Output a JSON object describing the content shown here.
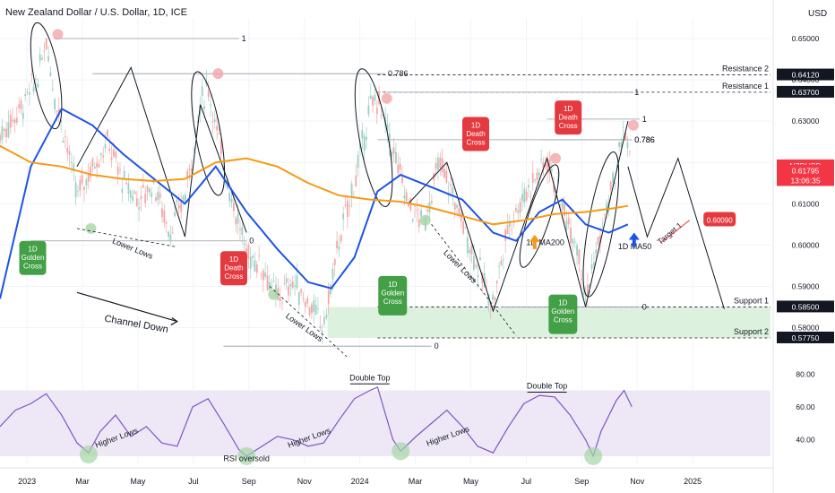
{
  "header": {
    "title": "New Zealand Dollar / U.S. Dollar, 1D, ICE",
    "currency": "USD"
  },
  "colors": {
    "ma50": "#1e53e5",
    "ma200": "#f59a14",
    "rsi": "#7e57c2",
    "rsi_band": "#ede7f6",
    "up_candle": "#9ad0c4",
    "down_candle": "#f3a6a6",
    "support_zone": "#d6f0d9",
    "golden_badge": "#43a047",
    "death_badge": "#e53940",
    "dark_badge": "#131722",
    "price_badge": "#f23645"
  },
  "chart_data": {
    "type": "candlestick",
    "instrument": "NZDUSD",
    "timeframe": "1D",
    "x_tick_labels": [
      "2023",
      "Mar",
      "May",
      "Jul",
      "Sep",
      "Nov",
      "2024",
      "Mar",
      "May",
      "Jul",
      "Sep",
      "Nov",
      "2025"
    ],
    "y_tick_labels": [
      "0.65000",
      "0.64000",
      "0.63000",
      "0.62000",
      "0.61000",
      "0.60000",
      "0.59000",
      "0.58000"
    ],
    "ylim": [
      0.5725,
      0.655
    ],
    "price_axis_badges": [
      {
        "label": "0.64120",
        "value": 0.6412,
        "style": "dark"
      },
      {
        "label": "0.63700",
        "value": 0.637,
        "style": "dark"
      },
      {
        "label": "NZDUSD",
        "value": 0.6192,
        "style": "red"
      },
      {
        "label": "0.61795",
        "value": 0.61795,
        "style": "red"
      },
      {
        "label": "13:06:35",
        "value": 0.6156,
        "style": "red"
      },
      {
        "label": "0.58500",
        "value": 0.585,
        "style": "dark"
      },
      {
        "label": "0.57750",
        "value": 0.5775,
        "style": "dark"
      }
    ],
    "levels": [
      {
        "name": "Resistance 2",
        "value": 0.6412
      },
      {
        "name": "Resistance 1",
        "value": 0.637
      },
      {
        "name": "Support 1",
        "value": 0.585
      },
      {
        "name": "Support 2",
        "value": 0.5775
      }
    ],
    "fib_labels": [
      "1",
      "0.786",
      "0",
      "1",
      "0.786",
      "0",
      "1",
      "0.786",
      "0"
    ],
    "price_series": [
      {
        "t": 0.0,
        "v": 0.6265
      },
      {
        "t": 0.03,
        "v": 0.634
      },
      {
        "t": 0.05,
        "v": 0.641
      },
      {
        "t": 0.06,
        "v": 0.65
      },
      {
        "t": 0.07,
        "v": 0.637
      },
      {
        "t": 0.085,
        "v": 0.626
      },
      {
        "t": 0.1,
        "v": 0.612
      },
      {
        "t": 0.12,
        "v": 0.619
      },
      {
        "t": 0.14,
        "v": 0.625
      },
      {
        "t": 0.16,
        "v": 0.615
      },
      {
        "t": 0.18,
        "v": 0.611
      },
      {
        "t": 0.2,
        "v": 0.615
      },
      {
        "t": 0.22,
        "v": 0.603
      },
      {
        "t": 0.24,
        "v": 0.612
      },
      {
        "t": 0.26,
        "v": 0.634
      },
      {
        "t": 0.27,
        "v": 0.6385
      },
      {
        "t": 0.285,
        "v": 0.624
      },
      {
        "t": 0.3,
        "v": 0.612
      },
      {
        "t": 0.32,
        "v": 0.598
      },
      {
        "t": 0.34,
        "v": 0.595
      },
      {
        "t": 0.36,
        "v": 0.587
      },
      {
        "t": 0.38,
        "v": 0.591
      },
      {
        "t": 0.4,
        "v": 0.586
      },
      {
        "t": 0.42,
        "v": 0.58
      },
      {
        "t": 0.44,
        "v": 0.601
      },
      {
        "t": 0.46,
        "v": 0.615
      },
      {
        "t": 0.48,
        "v": 0.633
      },
      {
        "t": 0.49,
        "v": 0.6355
      },
      {
        "t": 0.51,
        "v": 0.623
      },
      {
        "t": 0.53,
        "v": 0.61
      },
      {
        "t": 0.55,
        "v": 0.605
      },
      {
        "t": 0.57,
        "v": 0.62
      },
      {
        "t": 0.59,
        "v": 0.611
      },
      {
        "t": 0.61,
        "v": 0.6
      },
      {
        "t": 0.63,
        "v": 0.59
      },
      {
        "t": 0.64,
        "v": 0.586
      },
      {
        "t": 0.66,
        "v": 0.605
      },
      {
        "t": 0.68,
        "v": 0.612
      },
      {
        "t": 0.7,
        "v": 0.618
      },
      {
        "t": 0.71,
        "v": 0.621
      },
      {
        "t": 0.73,
        "v": 0.609
      },
      {
        "t": 0.75,
        "v": 0.6
      },
      {
        "t": 0.76,
        "v": 0.587
      },
      {
        "t": 0.78,
        "v": 0.603
      },
      {
        "t": 0.8,
        "v": 0.618
      },
      {
        "t": 0.81,
        "v": 0.629
      },
      {
        "t": 0.82,
        "v": 0.618
      }
    ],
    "series": [
      {
        "name": "1D MA50",
        "points": [
          {
            "t": 0.0,
            "v": 0.587
          },
          {
            "t": 0.04,
            "v": 0.619
          },
          {
            "t": 0.08,
            "v": 0.633
          },
          {
            "t": 0.12,
            "v": 0.629
          },
          {
            "t": 0.16,
            "v": 0.622
          },
          {
            "t": 0.2,
            "v": 0.616
          },
          {
            "t": 0.24,
            "v": 0.61
          },
          {
            "t": 0.28,
            "v": 0.619
          },
          {
            "t": 0.32,
            "v": 0.608
          },
          {
            "t": 0.36,
            "v": 0.599
          },
          {
            "t": 0.4,
            "v": 0.591
          },
          {
            "t": 0.43,
            "v": 0.5895
          },
          {
            "t": 0.46,
            "v": 0.597
          },
          {
            "t": 0.49,
            "v": 0.613
          },
          {
            "t": 0.52,
            "v": 0.617
          },
          {
            "t": 0.56,
            "v": 0.614
          },
          {
            "t": 0.6,
            "v": 0.611
          },
          {
            "t": 0.64,
            "v": 0.603
          },
          {
            "t": 0.67,
            "v": 0.601
          },
          {
            "t": 0.7,
            "v": 0.608
          },
          {
            "t": 0.73,
            "v": 0.611
          },
          {
            "t": 0.76,
            "v": 0.605
          },
          {
            "t": 0.79,
            "v": 0.603
          },
          {
            "t": 0.815,
            "v": 0.605
          }
        ]
      },
      {
        "name": "1D MA200",
        "points": [
          {
            "t": 0.0,
            "v": 0.624
          },
          {
            "t": 0.04,
            "v": 0.62
          },
          {
            "t": 0.08,
            "v": 0.619
          },
          {
            "t": 0.12,
            "v": 0.617
          },
          {
            "t": 0.16,
            "v": 0.616
          },
          {
            "t": 0.2,
            "v": 0.6155
          },
          {
            "t": 0.24,
            "v": 0.616
          },
          {
            "t": 0.28,
            "v": 0.62
          },
          {
            "t": 0.32,
            "v": 0.621
          },
          {
            "t": 0.36,
            "v": 0.619
          },
          {
            "t": 0.4,
            "v": 0.615
          },
          {
            "t": 0.44,
            "v": 0.612
          },
          {
            "t": 0.48,
            "v": 0.611
          },
          {
            "t": 0.52,
            "v": 0.6105
          },
          {
            "t": 0.56,
            "v": 0.609
          },
          {
            "t": 0.6,
            "v": 0.607
          },
          {
            "t": 0.64,
            "v": 0.605
          },
          {
            "t": 0.68,
            "v": 0.606
          },
          {
            "t": 0.72,
            "v": 0.6075
          },
          {
            "t": 0.76,
            "v": 0.608
          },
          {
            "t": 0.8,
            "v": 0.609
          },
          {
            "t": 0.815,
            "v": 0.6095
          }
        ]
      }
    ],
    "projection": [
      {
        "t": 0.815,
        "v": 0.619
      },
      {
        "t": 0.84,
        "v": 0.602
      },
      {
        "t": 0.88,
        "v": 0.621
      },
      {
        "t": 0.94,
        "v": 0.5845
      }
    ],
    "rsi": {
      "y_tick_labels": [
        "80.00",
        "60.00",
        "40.00"
      ],
      "ylim": [
        25,
        84
      ],
      "band": [
        30,
        70
      ],
      "values": [
        {
          "t": 0.0,
          "v": 48
        },
        {
          "t": 0.02,
          "v": 58
        },
        {
          "t": 0.04,
          "v": 62
        },
        {
          "t": 0.06,
          "v": 68
        },
        {
          "t": 0.08,
          "v": 55
        },
        {
          "t": 0.1,
          "v": 38
        },
        {
          "t": 0.115,
          "v": 32
        },
        {
          "t": 0.13,
          "v": 45
        },
        {
          "t": 0.15,
          "v": 55
        },
        {
          "t": 0.17,
          "v": 42
        },
        {
          "t": 0.19,
          "v": 48
        },
        {
          "t": 0.21,
          "v": 38
        },
        {
          "t": 0.23,
          "v": 36
        },
        {
          "t": 0.25,
          "v": 60
        },
        {
          "t": 0.27,
          "v": 65
        },
        {
          "t": 0.29,
          "v": 50
        },
        {
          "t": 0.31,
          "v": 34
        },
        {
          "t": 0.32,
          "v": 30
        },
        {
          "t": 0.34,
          "v": 36
        },
        {
          "t": 0.36,
          "v": 42
        },
        {
          "t": 0.38,
          "v": 40
        },
        {
          "t": 0.4,
          "v": 36
        },
        {
          "t": 0.42,
          "v": 38
        },
        {
          "t": 0.44,
          "v": 52
        },
        {
          "t": 0.46,
          "v": 65
        },
        {
          "t": 0.48,
          "v": 70
        },
        {
          "t": 0.49,
          "v": 72
        },
        {
          "t": 0.5,
          "v": 56
        },
        {
          "t": 0.51,
          "v": 40
        },
        {
          "t": 0.52,
          "v": 33
        },
        {
          "t": 0.54,
          "v": 42
        },
        {
          "t": 0.56,
          "v": 50
        },
        {
          "t": 0.58,
          "v": 58
        },
        {
          "t": 0.6,
          "v": 48
        },
        {
          "t": 0.62,
          "v": 36
        },
        {
          "t": 0.64,
          "v": 32
        },
        {
          "t": 0.66,
          "v": 48
        },
        {
          "t": 0.68,
          "v": 62
        },
        {
          "t": 0.7,
          "v": 67
        },
        {
          "t": 0.72,
          "v": 66
        },
        {
          "t": 0.74,
          "v": 55
        },
        {
          "t": 0.76,
          "v": 40
        },
        {
          "t": 0.77,
          "v": 30
        },
        {
          "t": 0.78,
          "v": 45
        },
        {
          "t": 0.8,
          "v": 64
        },
        {
          "t": 0.81,
          "v": 70
        },
        {
          "t": 0.82,
          "v": 60
        }
      ]
    },
    "annotations": {
      "golden_cross": [
        "1D\nGolden\nCross",
        "1D\nGolden\nCross",
        "1D\nGolden\nCross"
      ],
      "death_cross": [
        "1D\nDeath\nCross",
        "1D\nDeath\nCross",
        "1D\nDeath\nCross"
      ],
      "lower_lows": [
        "Lower Lows",
        "Lower Lows",
        "Lower Lows"
      ],
      "channel_down": "Channel Down",
      "ma200_label": "1D MA200",
      "ma50_label": "1D MA50",
      "target_label": "Target 1",
      "target_value": "0.60090",
      "double_top": [
        "Double Top",
        "Double Top"
      ],
      "higher_lows": [
        "Higher Lows",
        "Higher Lows",
        "Higher Lows"
      ],
      "rsi_oversold": "RSI oversold"
    }
  }
}
